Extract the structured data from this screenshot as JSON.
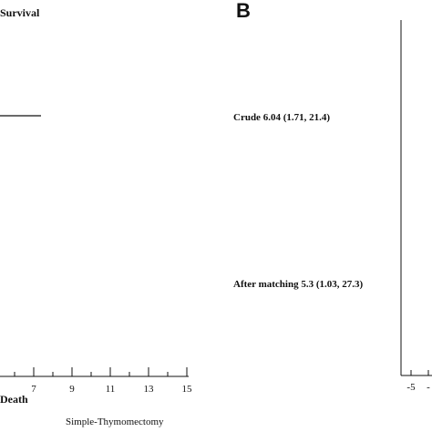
{
  "chart_data": [
    {
      "type": "forest",
      "panel": "",
      "title": "Survival",
      "x_ticks": [
        "7",
        "9",
        "11",
        "13",
        "15"
      ],
      "xlabel": "Death",
      "bottom_label": "Simple-Thymomectomy",
      "grid": false
    },
    {
      "type": "forest",
      "panel": "B",
      "rows": [
        {
          "label": "Crude 6.04 (1.71, 21.4)",
          "estimate": 6.04,
          "ci": [
            1.71,
            21.4
          ]
        },
        {
          "label": "After matching 5.3 (1.03, 27.3)",
          "estimate": 5.3,
          "ci": [
            1.03,
            27.3
          ]
        }
      ],
      "x_ticks": [
        "-5",
        "-"
      ],
      "grid": false
    }
  ]
}
